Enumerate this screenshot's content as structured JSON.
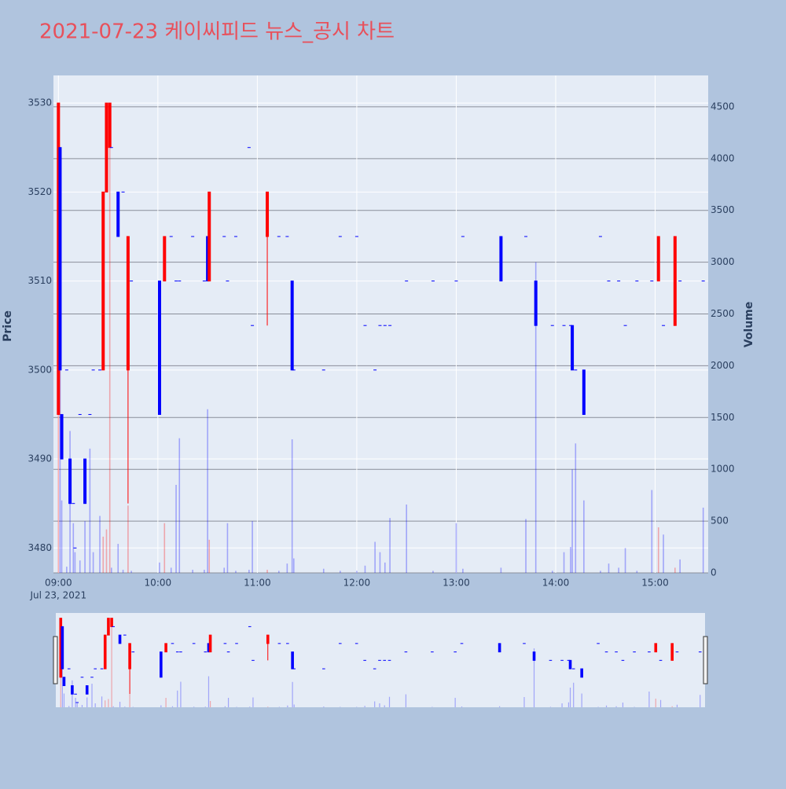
{
  "chart_data": {
    "type": "candlestick",
    "title": "2021-07-23 케이씨피드 뉴스_공시 차트",
    "yaxis_title": "Price",
    "y2axis_title": "Volume",
    "increasing_color": "#ff0000",
    "decreasing_color": "#0000ff",
    "x": [
      "09:00",
      "09:01",
      "09:02",
      "09:05",
      "09:07",
      "09:09",
      "09:10",
      "09:13",
      "09:16",
      "09:19",
      "09:21",
      "09:25",
      "09:27",
      "09:29",
      "09:31",
      "09:32",
      "09:36",
      "09:39",
      "09:42",
      "09:44",
      "10:01",
      "10:04",
      "10:08",
      "10:11",
      "10:13",
      "10:21",
      "10:28",
      "10:30",
      "10:31",
      "10:40",
      "10:42",
      "10:47",
      "10:55",
      "10:57",
      "11:06",
      "11:13",
      "11:18",
      "11:21",
      "11:22",
      "11:40",
      "11:50",
      "12:00",
      "12:05",
      "12:11",
      "12:14",
      "12:17",
      "12:20",
      "12:30",
      "12:46",
      "13:00",
      "13:04",
      "13:27",
      "13:42",
      "13:48",
      "13:58",
      "14:05",
      "14:09",
      "14:10",
      "14:12",
      "14:17",
      "14:27",
      "14:32",
      "14:38",
      "14:42",
      "14:49",
      "14:58",
      "15:02",
      "15:05",
      "15:12",
      "15:15",
      "15:29"
    ],
    "open": [
      3495,
      3525,
      3495,
      3500,
      3490,
      3485,
      3480,
      3495,
      3490,
      3495,
      3500,
      3500,
      3500,
      3520,
      3525,
      3525,
      3520,
      3520,
      3500,
      3510,
      3510,
      3510,
      3515,
      3510,
      3510,
      3515,
      3510,
      3515,
      3510,
      3515,
      3510,
      3515,
      3525,
      3505,
      3515,
      3515,
      3515,
      3510,
      3500,
      3500,
      3515,
      3515,
      3505,
      3500,
      3505,
      3505,
      3505,
      3510,
      3510,
      3510,
      3515,
      3515,
      3515,
      3510,
      3505,
      3505,
      3505,
      3505,
      3500,
      3500,
      3515,
      3510,
      3510,
      3505,
      3510,
      3510,
      3510,
      3505,
      3505,
      3510,
      3510
    ],
    "high": [
      3530,
      3525,
      3495,
      3500,
      3490,
      3485,
      3480,
      3495,
      3490,
      3495,
      3500,
      3500,
      3520,
      3530,
      3530,
      3525,
      3520,
      3520,
      3515,
      3510,
      3510,
      3515,
      3515,
      3510,
      3510,
      3515,
      3510,
      3515,
      3520,
      3515,
      3510,
      3515,
      3525,
      3505,
      3520,
      3515,
      3515,
      3510,
      3500,
      3500,
      3515,
      3515,
      3505,
      3500,
      3505,
      3505,
      3505,
      3510,
      3510,
      3510,
      3515,
      3515,
      3515,
      3510,
      3505,
      3505,
      3505,
      3505,
      3500,
      3500,
      3515,
      3510,
      3510,
      3505,
      3510,
      3510,
      3515,
      3505,
      3515,
      3510,
      3510
    ],
    "low": [
      3495,
      3500,
      3490,
      3500,
      3485,
      3485,
      3480,
      3495,
      3485,
      3495,
      3500,
      3500,
      3500,
      3520,
      3525,
      3525,
      3515,
      3520,
      3485,
      3510,
      3495,
      3510,
      3515,
      3510,
      3510,
      3515,
      3510,
      3510,
      3510,
      3515,
      3510,
      3515,
      3525,
      3505,
      3505,
      3515,
      3515,
      3500,
      3500,
      3500,
      3515,
      3515,
      3505,
      3500,
      3505,
      3505,
      3505,
      3510,
      3510,
      3510,
      3515,
      3510,
      3515,
      3505,
      3505,
      3505,
      3505,
      3500,
      3500,
      3495,
      3515,
      3510,
      3510,
      3505,
      3510,
      3510,
      3510,
      3505,
      3505,
      3510,
      3510
    ],
    "close": [
      3530,
      3500,
      3490,
      3500,
      3485,
      3485,
      3480,
      3495,
      3485,
      3495,
      3500,
      3500,
      3520,
      3530,
      3530,
      3525,
      3515,
      3520,
      3515,
      3510,
      3495,
      3515,
      3515,
      3510,
      3510,
      3515,
      3510,
      3510,
      3520,
      3515,
      3510,
      3515,
      3525,
      3505,
      3520,
      3515,
      3515,
      3500,
      3500,
      3500,
      3515,
      3515,
      3505,
      3500,
      3505,
      3505,
      3505,
      3510,
      3510,
      3510,
      3515,
      3510,
      3515,
      3505,
      3505,
      3505,
      3505,
      3500,
      3500,
      3495,
      3515,
      3510,
      3510,
      3505,
      3510,
      3510,
      3515,
      3505,
      3515,
      3510,
      3510
    ],
    "volume": [
      1600,
      2250,
      700,
      60,
      1370,
      480,
      200,
      120,
      500,
      1200,
      200,
      550,
      350,
      420,
      4100,
      50,
      280,
      30,
      650,
      20,
      100,
      480,
      50,
      850,
      1300,
      30,
      30,
      1580,
      320,
      50,
      480,
      20,
      30,
      500,
      30,
      20,
      90,
      1290,
      140,
      40,
      20,
      20,
      70,
      300,
      200,
      100,
      530,
      660,
      20,
      480,
      40,
      50,
      520,
      3000,
      20,
      200,
      250,
      1000,
      1250,
      700,
      20,
      90,
      50,
      240,
      20,
      800,
      440,
      370,
      50,
      130,
      630
    ],
    "xlim": [
      "08:57",
      "15:32"
    ],
    "xticks": [
      "09:00",
      "10:00",
      "11:00",
      "12:00",
      "13:00",
      "14:00",
      "15:00"
    ],
    "xtick_sub": "Jul 23, 2021",
    "ylim": [
      3477.2,
      3533.1
    ],
    "yticks": [
      3480,
      3490,
      3500,
      3510,
      3520,
      3530
    ],
    "y2lim": [
      0,
      4803
    ],
    "y2ticks": [
      0,
      500,
      1000,
      1500,
      2000,
      2500,
      3000,
      3500,
      4000,
      4500
    ],
    "rangeslider": true
  }
}
